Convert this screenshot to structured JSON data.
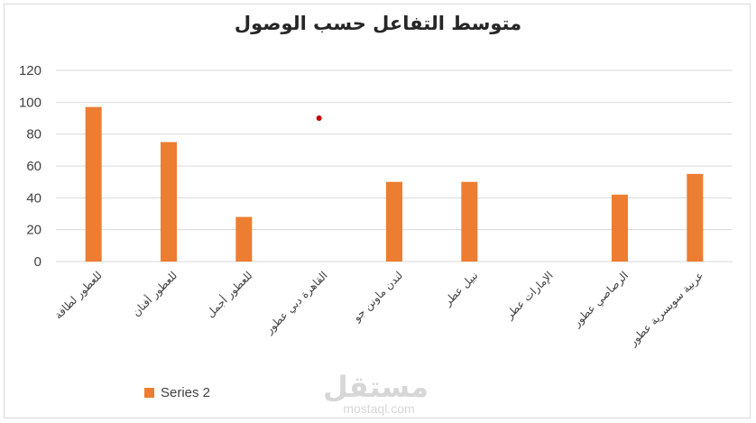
{
  "chart_data": {
    "type": "bar",
    "title": "متوسط التفاعل حسب الوصول",
    "categories": [
      "للعطور لطافة",
      "للعطور أفنان",
      "للعطور أجمل",
      "القاهرة دبي عطور",
      "لندن ماونن جو",
      "نبيل عطر",
      "الإمارات عطر",
      "الرصاصي عطور",
      "عربية سويسرية عطور"
    ],
    "series": [
      {
        "name": "Series 2",
        "values": [
          97,
          75,
          28,
          null,
          50,
          50,
          null,
          42,
          55
        ]
      }
    ],
    "yticks": [
      0,
      20,
      40,
      60,
      80,
      100,
      120
    ],
    "ylim": [
      0,
      120
    ],
    "grid": true,
    "legend_position": "bottom-left",
    "colors": {
      "bar": "#ed7d31",
      "grid": "#d9d9d9",
      "marker": "#c00000"
    },
    "annotations": [
      {
        "type": "dot",
        "x": "القاهرة دبي عطور",
        "y": 90
      }
    ]
  },
  "watermark": {
    "main": "مستقل",
    "sub": "mostaql.com"
  }
}
